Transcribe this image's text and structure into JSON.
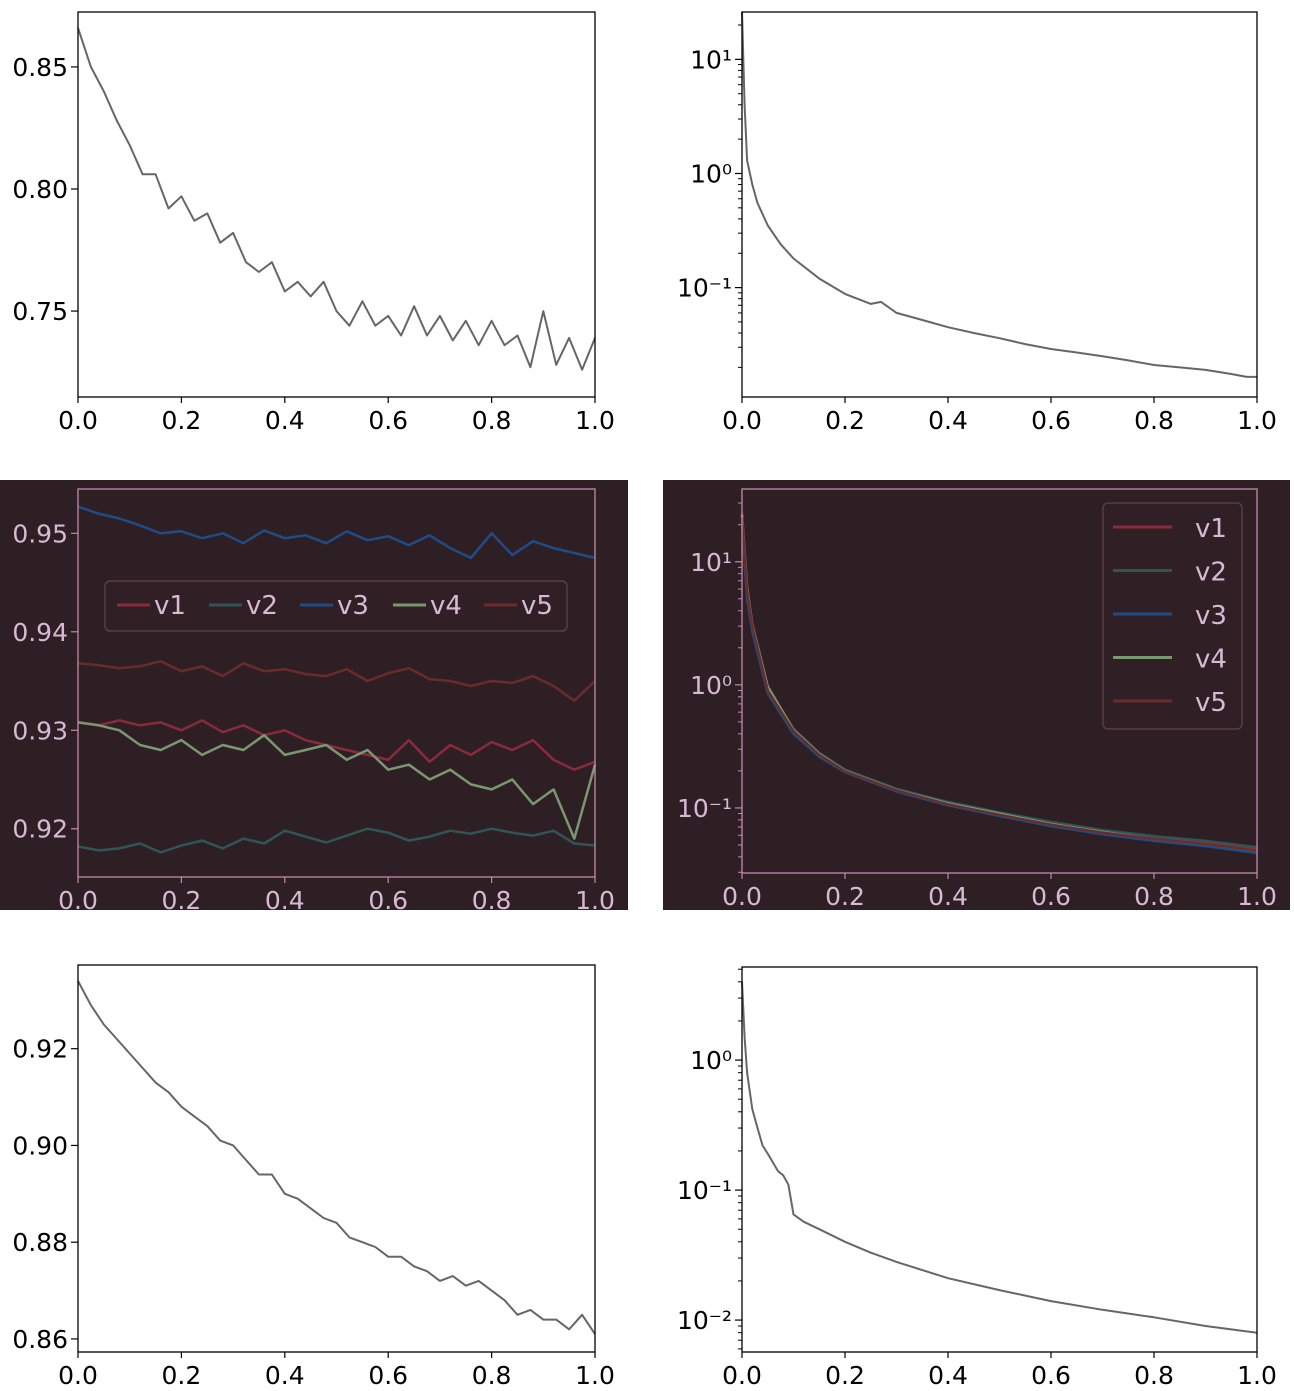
{
  "theme": {
    "light_line": "#666666",
    "light_axis": "#000000",
    "light_text": "#000000",
    "dark_bg": "#2e1f24",
    "dark_axis": "#c48aab",
    "dark_text": "#d9b8d6"
  },
  "chart_data": [
    {
      "id": "top-left",
      "type": "line",
      "yscale": "linear",
      "dark": false,
      "xlim": [
        0,
        1
      ],
      "ylim": [
        0.7148,
        0.8725
      ],
      "xticks": [
        0,
        0.2,
        0.4,
        0.6,
        0.8,
        1.0
      ],
      "xtick_labels": [
        "0.0",
        "0.2",
        "0.4",
        "0.6",
        "0.8",
        "1.0"
      ],
      "yticks": [
        0.75,
        0.8,
        0.85
      ],
      "ytick_labels": [
        "0.75",
        "0.80",
        "0.85"
      ],
      "series": [
        {
          "x": [
            0,
            0.025,
            0.05,
            0.075,
            0.1,
            0.125,
            0.15,
            0.175,
            0.2,
            0.225,
            0.25,
            0.275,
            0.3,
            0.325,
            0.35,
            0.375,
            0.4,
            0.425,
            0.45,
            0.475,
            0.5,
            0.525,
            0.55,
            0.575,
            0.6,
            0.625,
            0.65,
            0.675,
            0.7,
            0.725,
            0.75,
            0.775,
            0.8,
            0.825,
            0.85,
            0.875,
            0.9,
            0.925,
            0.95,
            0.975,
            1.0
          ],
          "y": [
            0.866,
            0.85,
            0.84,
            0.828,
            0.818,
            0.806,
            0.806,
            0.792,
            0.797,
            0.787,
            0.79,
            0.778,
            0.782,
            0.77,
            0.766,
            0.77,
            0.758,
            0.762,
            0.756,
            0.762,
            0.75,
            0.744,
            0.754,
            0.744,
            0.748,
            0.74,
            0.752,
            0.74,
            0.748,
            0.738,
            0.746,
            0.736,
            0.746,
            0.736,
            0.74,
            0.727,
            0.75,
            0.728,
            0.739,
            0.726,
            0.739
          ],
          "color": "#666666"
        }
      ]
    },
    {
      "id": "top-right",
      "type": "line",
      "yscale": "log",
      "dark": false,
      "xlim": [
        0,
        1
      ],
      "ylim": [
        0.011,
        26
      ],
      "xticks": [
        0,
        0.2,
        0.4,
        0.6,
        0.8,
        1.0
      ],
      "xtick_labels": [
        "0.0",
        "0.2",
        "0.4",
        "0.6",
        "0.8",
        "1.0"
      ],
      "yticks": [
        0.1,
        1,
        10
      ],
      "ytick_labels": [
        "10⁻¹",
        "10⁰",
        "10¹"
      ],
      "series": [
        {
          "x": [
            0,
            0.005,
            0.01,
            0.02,
            0.03,
            0.05,
            0.075,
            0.1,
            0.15,
            0.2,
            0.25,
            0.27,
            0.3,
            0.35,
            0.4,
            0.45,
            0.5,
            0.55,
            0.6,
            0.65,
            0.7,
            0.75,
            0.8,
            0.85,
            0.9,
            0.95,
            0.98,
            1.0
          ],
          "y": [
            26,
            4,
            1.3,
            0.8,
            0.55,
            0.35,
            0.24,
            0.18,
            0.12,
            0.088,
            0.072,
            0.075,
            0.06,
            0.052,
            0.045,
            0.04,
            0.036,
            0.032,
            0.029,
            0.027,
            0.025,
            0.023,
            0.021,
            0.02,
            0.019,
            0.0175,
            0.0165,
            0.0165
          ],
          "color": "#666666"
        }
      ]
    },
    {
      "id": "middle-left",
      "type": "line",
      "yscale": "linear",
      "dark": true,
      "xlim": [
        0,
        1
      ],
      "ylim": [
        0.9151,
        0.9545
      ],
      "xticks": [
        0,
        0.2,
        0.4,
        0.6,
        0.8,
        1.0
      ],
      "xtick_labels": [
        "0.0",
        "0.2",
        "0.4",
        "0.6",
        "0.8",
        "1.0"
      ],
      "yticks": [
        0.92,
        0.93,
        0.94,
        0.95
      ],
      "ytick_labels": [
        "0.92",
        "0.93",
        "0.94",
        "0.95"
      ],
      "legend": {
        "placement": "center-left",
        "orientation": "horizontal"
      },
      "series": [
        {
          "name": "v1",
          "color": "#8a2a3c",
          "x_step": 0.04,
          "y": [
            0.9308,
            0.9305,
            0.931,
            0.9305,
            0.9308,
            0.93,
            0.931,
            0.9298,
            0.9305,
            0.9295,
            0.93,
            0.929,
            0.9285,
            0.928,
            0.9275,
            0.927,
            0.929,
            0.9268,
            0.9285,
            0.9275,
            0.9288,
            0.928,
            0.929,
            0.927,
            0.926,
            0.9268
          ]
        },
        {
          "name": "v2",
          "color": "#2f5556",
          "x_step": 0.04,
          "y": [
            0.9182,
            0.9178,
            0.918,
            0.9185,
            0.9176,
            0.9183,
            0.9188,
            0.918,
            0.919,
            0.9185,
            0.9198,
            0.9192,
            0.9186,
            0.9193,
            0.92,
            0.9196,
            0.9188,
            0.9192,
            0.9198,
            0.9195,
            0.92,
            0.9196,
            0.9193,
            0.9198,
            0.9185,
            0.9183
          ]
        },
        {
          "name": "v3",
          "color": "#1f4c86",
          "x_step": 0.04,
          "y": [
            0.9527,
            0.952,
            0.9515,
            0.9508,
            0.95,
            0.9502,
            0.9495,
            0.95,
            0.949,
            0.9503,
            0.9495,
            0.9498,
            0.949,
            0.9502,
            0.9493,
            0.9497,
            0.9488,
            0.9498,
            0.9485,
            0.9475,
            0.95,
            0.9478,
            0.9492,
            0.9485,
            0.948,
            0.9475
          ]
        },
        {
          "name": "v4",
          "color": "#7a9870",
          "x_step": 0.04,
          "y": [
            0.9308,
            0.9305,
            0.93,
            0.9285,
            0.928,
            0.929,
            0.9275,
            0.9285,
            0.928,
            0.9295,
            0.9275,
            0.928,
            0.9285,
            0.927,
            0.928,
            0.926,
            0.9265,
            0.925,
            0.926,
            0.9245,
            0.924,
            0.925,
            0.9225,
            0.924,
            0.919,
            0.9265
          ]
        },
        {
          "name": "v5",
          "color": "#6a2b2b",
          "x_step": 0.04,
          "y": [
            0.9368,
            0.9366,
            0.9363,
            0.9365,
            0.937,
            0.936,
            0.9365,
            0.9355,
            0.9368,
            0.936,
            0.9362,
            0.9357,
            0.9355,
            0.9362,
            0.935,
            0.9358,
            0.9363,
            0.9352,
            0.935,
            0.9345,
            0.935,
            0.9348,
            0.9355,
            0.9345,
            0.933,
            0.935
          ]
        }
      ]
    },
    {
      "id": "middle-right",
      "type": "line",
      "yscale": "log",
      "dark": true,
      "xlim": [
        0,
        1
      ],
      "ylim": [
        0.0296,
        39
      ],
      "xticks": [
        0,
        0.2,
        0.4,
        0.6,
        0.8,
        1.0
      ],
      "xtick_labels": [
        "0.0",
        "0.2",
        "0.4",
        "0.6",
        "0.8",
        "1.0"
      ],
      "yticks": [
        0.1,
        1,
        10
      ],
      "ytick_labels": [
        "10⁻¹",
        "10⁰",
        "10¹"
      ],
      "legend": {
        "placement": "upper-right",
        "orientation": "vertical"
      },
      "x": [
        0,
        0.01,
        0.02,
        0.05,
        0.1,
        0.15,
        0.2,
        0.3,
        0.4,
        0.5,
        0.6,
        0.7,
        0.8,
        0.9,
        1.0
      ],
      "series": [
        {
          "name": "v1",
          "color": "#8a2a3c",
          "y": [
            25,
            6,
            3,
            0.92,
            0.43,
            0.27,
            0.2,
            0.14,
            0.108,
            0.089,
            0.074,
            0.064,
            0.057,
            0.052,
            0.046
          ]
        },
        {
          "name": "v2",
          "color": "#2f5556",
          "y": [
            22,
            5.5,
            2.9,
            0.95,
            0.44,
            0.28,
            0.205,
            0.143,
            0.112,
            0.092,
            0.077,
            0.066,
            0.059,
            0.054,
            0.048
          ]
        },
        {
          "name": "v3",
          "color": "#1f4c86",
          "y": [
            20,
            5,
            2.7,
            0.85,
            0.4,
            0.26,
            0.195,
            0.136,
            0.105,
            0.086,
            0.071,
            0.061,
            0.054,
            0.049,
            0.043
          ]
        },
        {
          "name": "v4",
          "color": "#7a9870",
          "y": [
            24,
            6.2,
            3.1,
            0.97,
            0.43,
            0.275,
            0.2,
            0.14,
            0.109,
            0.09,
            0.074,
            0.064,
            0.056,
            0.051,
            0.045
          ]
        },
        {
          "name": "v5",
          "color": "#6a2b2b",
          "y": [
            23,
            5.8,
            3,
            0.9,
            0.42,
            0.27,
            0.198,
            0.139,
            0.107,
            0.088,
            0.073,
            0.063,
            0.056,
            0.051,
            0.045
          ]
        }
      ]
    },
    {
      "id": "bottom-left",
      "type": "line",
      "yscale": "linear",
      "dark": false,
      "xlim": [
        0,
        1
      ],
      "ylim": [
        0.8573,
        0.9373
      ],
      "xticks": [
        0,
        0.2,
        0.4,
        0.6,
        0.8,
        1.0
      ],
      "xtick_labels": [
        "0.0",
        "0.2",
        "0.4",
        "0.6",
        "0.8",
        "1.0"
      ],
      "yticks": [
        0.86,
        0.88,
        0.9,
        0.92
      ],
      "ytick_labels": [
        "0.86",
        "0.88",
        "0.90",
        "0.92"
      ],
      "series": [
        {
          "x": [
            0,
            0.025,
            0.05,
            0.075,
            0.1,
            0.125,
            0.15,
            0.175,
            0.2,
            0.225,
            0.25,
            0.275,
            0.3,
            0.325,
            0.35,
            0.375,
            0.4,
            0.425,
            0.45,
            0.475,
            0.5,
            0.525,
            0.55,
            0.575,
            0.6,
            0.625,
            0.65,
            0.675,
            0.7,
            0.725,
            0.75,
            0.775,
            0.8,
            0.825,
            0.85,
            0.875,
            0.9,
            0.925,
            0.95,
            0.975,
            1.0
          ],
          "y": [
            0.934,
            0.929,
            0.925,
            0.922,
            0.919,
            0.916,
            0.913,
            0.911,
            0.908,
            0.906,
            0.904,
            0.901,
            0.9,
            0.897,
            0.894,
            0.894,
            0.89,
            0.889,
            0.887,
            0.885,
            0.884,
            0.881,
            0.88,
            0.879,
            0.877,
            0.877,
            0.875,
            0.874,
            0.872,
            0.873,
            0.871,
            0.872,
            0.87,
            0.868,
            0.865,
            0.866,
            0.864,
            0.864,
            0.862,
            0.865,
            0.861
          ],
          "color": "#666666"
        }
      ]
    },
    {
      "id": "bottom-right",
      "type": "line",
      "yscale": "log",
      "dark": false,
      "xlim": [
        0,
        1
      ],
      "ylim": [
        0.00568,
        5.2
      ],
      "xticks": [
        0,
        0.2,
        0.4,
        0.6,
        0.8,
        1.0
      ],
      "xtick_labels": [
        "0.0",
        "0.2",
        "0.4",
        "0.6",
        "0.8",
        "1.0"
      ],
      "yticks": [
        0.01,
        0.1,
        1
      ],
      "ytick_labels": [
        "10⁻²",
        "10⁻¹",
        "10⁰"
      ],
      "series": [
        {
          "x": [
            0,
            0.005,
            0.01,
            0.02,
            0.03,
            0.04,
            0.05,
            0.07,
            0.08,
            0.09,
            0.1,
            0.12,
            0.15,
            0.2,
            0.25,
            0.3,
            0.4,
            0.5,
            0.6,
            0.7,
            0.8,
            0.9,
            1.0
          ],
          "y": [
            4,
            1.5,
            0.8,
            0.42,
            0.3,
            0.22,
            0.19,
            0.14,
            0.13,
            0.11,
            0.065,
            0.057,
            0.05,
            0.04,
            0.033,
            0.028,
            0.021,
            0.017,
            0.014,
            0.012,
            0.0105,
            0.009,
            0.008
          ],
          "color": "#666666"
        }
      ]
    }
  ]
}
